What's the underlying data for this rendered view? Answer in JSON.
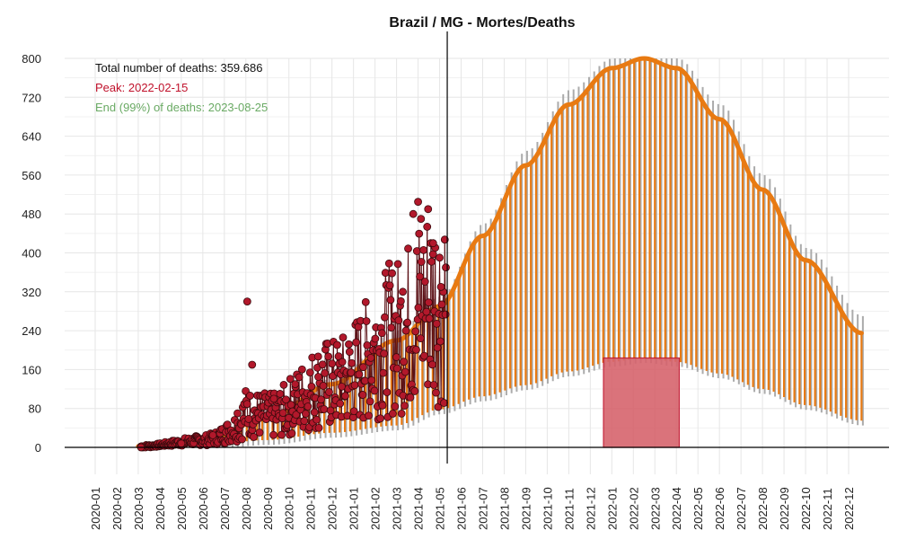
{
  "chart_data": {
    "type": "line",
    "title": "Brazil / MG - Mortes/Deaths",
    "xlabel": "",
    "ylabel": "",
    "ylim": [
      0,
      800
    ],
    "y_ticks": [
      "0",
      "80",
      "160",
      "240",
      "320",
      "400",
      "480",
      "560",
      "640",
      "720",
      "800"
    ],
    "x_ticks": [
      "2020-01",
      "2020-02",
      "2020-03",
      "2020-04",
      "2020-05",
      "2020-06",
      "2020-07",
      "2020-08",
      "2020-09",
      "2020-10",
      "2020-11",
      "2020-12",
      "2021-01",
      "2021-02",
      "2021-03",
      "2021-04",
      "2021-05",
      "2021-06",
      "2021-07",
      "2021-08",
      "2021-09",
      "2021-10",
      "2021-11",
      "2021-12",
      "2022-01",
      "2022-02",
      "2022-03",
      "2022-04",
      "2022-05",
      "2022-06",
      "2022-07",
      "2022-08",
      "2022-09",
      "2022-10",
      "2022-11",
      "2022-12"
    ],
    "grid": true,
    "annotations": {
      "total": "Total number of deaths: 359.686",
      "peak": "Peak: 2022-02-15",
      "end": "End (99%) of deaths: 2023-08-25"
    },
    "colors": {
      "observed": "#b2182b",
      "observed_line": "#5a0f14",
      "fit": "#e87a12",
      "band": "#ababab",
      "peak_region": "#d6646d",
      "annotation_total": "#111111",
      "annotation_peak": "#c0112b",
      "annotation_end": "#6aaa64"
    },
    "last_observed_date": "2021-05-12",
    "peak_region_dates": [
      "2021-12-20",
      "2022-04-05"
    ],
    "fit": {
      "dates": [
        "2020-03-01",
        "2020-06-01",
        "2020-09-01",
        "2020-12-01",
        "2021-03-01",
        "2021-05-01",
        "2021-07-01",
        "2021-09-01",
        "2021-11-01",
        "2022-01-01",
        "2022-02-15",
        "2022-04-01",
        "2022-06-01",
        "2022-08-01",
        "2022-10-01",
        "2022-12-20"
      ],
      "center": [
        2,
        14,
        60,
        130,
        220,
        290,
        435,
        580,
        705,
        780,
        800,
        780,
        675,
        530,
        385,
        235
      ],
      "lower": [
        0,
        5,
        15,
        30,
        45,
        78,
        105,
        128,
        156,
        176,
        184,
        176,
        152,
        120,
        87,
        55
      ],
      "upper": [
        3,
        17,
        68,
        142,
        240,
        310,
        460,
        610,
        735,
        800,
        800,
        800,
        705,
        560,
        410,
        270
      ]
    },
    "observed_sample": {
      "dates": [
        "2020-03-05",
        "2020-05-01",
        "2020-06-15",
        "2020-07-20",
        "2020-08-03",
        "2020-08-10",
        "2020-09-10",
        "2020-10-10",
        "2020-11-12",
        "2020-12-15",
        "2021-01-15",
        "2021-02-10",
        "2021-03-10",
        "2021-03-25",
        "2021-04-01",
        "2021-04-05",
        "2021-04-15",
        "2021-04-22",
        "2021-05-03",
        "2021-05-10"
      ],
      "values": [
        0,
        8,
        25,
        70,
        300,
        170,
        100,
        130,
        145,
        125,
        165,
        235,
        320,
        480,
        505,
        470,
        490,
        420,
        330,
        370
      ]
    }
  }
}
